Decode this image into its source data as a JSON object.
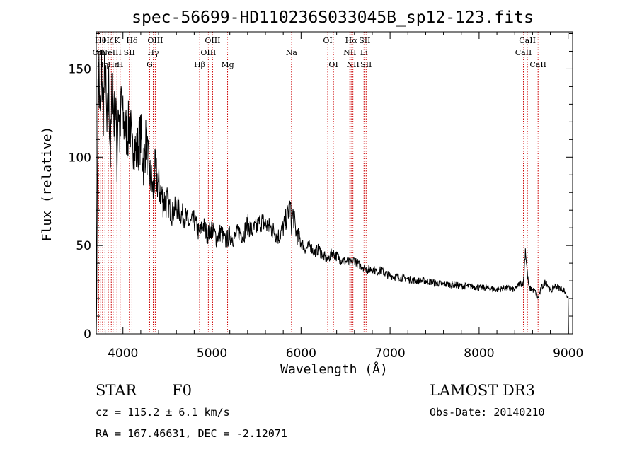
{
  "chart_data": {
    "type": "line",
    "title": "spec-56699-HD110236S033045B_sp12-123.fits",
    "xlabel": "Wavelength (Å)",
    "ylabel": "Flux (relative)",
    "xlim": [
      3700,
      9050
    ],
    "ylim": [
      0,
      171
    ],
    "xticks": [
      4000,
      5000,
      6000,
      7000,
      8000,
      9000
    ],
    "yticks": [
      0,
      50,
      100,
      150
    ],
    "xtick_labels": [
      "4000",
      "5000",
      "6000",
      "7000",
      "8000",
      "9000"
    ],
    "ytick_labels": [
      "0",
      "50",
      "100",
      "150"
    ],
    "line_color": "#000000",
    "marker_color": "#cc0000",
    "series": [
      {
        "name": "flux",
        "x": [
          3700,
          3705,
          3715,
          3730,
          3745,
          3760,
          3780,
          3800,
          3820,
          3840,
          3860,
          3880,
          3900,
          3920,
          3933,
          3945,
          3960,
          3968,
          3980,
          4000,
          4020,
          4050,
          4080,
          4101,
          4120,
          4150,
          4180,
          4200,
          4230,
          4260,
          4290,
          4320,
          4340,
          4360,
          4400,
          4450,
          4500,
          4550,
          4600,
          4650,
          4700,
          4750,
          4800,
          4861,
          4900,
          4950,
          5000,
          5050,
          5100,
          5150,
          5200,
          5250,
          5300,
          5350,
          5400,
          5450,
          5500,
          5550,
          5600,
          5650,
          5700,
          5750,
          5800,
          5850,
          5880,
          5893,
          5910,
          5950,
          6000,
          6050,
          6100,
          6150,
          6200,
          6250,
          6300,
          6350,
          6400,
          6450,
          6500,
          6563,
          6600,
          6650,
          6700,
          6750,
          6800,
          6850,
          6900,
          6950,
          7000,
          7100,
          7200,
          7300,
          7400,
          7500,
          7600,
          7700,
          7800,
          7900,
          8000,
          8100,
          8200,
          8300,
          8400,
          8450,
          8498,
          8520,
          8542,
          8560,
          8600,
          8630,
          8662,
          8700,
          8750,
          8800,
          8850,
          8900,
          8950,
          8980,
          9000,
          9005
        ],
        "values": [
          0,
          18,
          122,
          150,
          118,
          145,
          128,
          152,
          112,
          138,
          100,
          142,
          122,
          128,
          95,
          132,
          120,
          102,
          135,
          120,
          117,
          112,
          122,
          100,
          110,
          102,
          108,
          112,
          96,
          110,
          92,
          86,
          80,
          92,
          84,
          76,
          74,
          68,
          72,
          68,
          66,
          62,
          64,
          56,
          62,
          56,
          60,
          54,
          58,
          52,
          56,
          54,
          58,
          56,
          62,
          58,
          60,
          64,
          62,
          60,
          58,
          55,
          60,
          68,
          72,
          62,
          68,
          56,
          52,
          48,
          50,
          46,
          48,
          44,
          42,
          46,
          44,
          42,
          41,
          40,
          42,
          39,
          38,
          36,
          37,
          35,
          36,
          34,
          33,
          32,
          31,
          30,
          30,
          29,
          28,
          28,
          27,
          27,
          26,
          26,
          25,
          26,
          25,
          28,
          29,
          48,
          34,
          26,
          25,
          24,
          20,
          26,
          30,
          24,
          27,
          26,
          25,
          22,
          21,
          0
        ]
      }
    ],
    "line_markers": [
      {
        "w": 3727,
        "label": "OII",
        "row": 2
      },
      {
        "w": 3750,
        "label": "Hθ",
        "row": 1
      },
      {
        "w": 3771,
        "label": "Hη",
        "row": 3
      },
      {
        "w": 3798,
        "label": "Hι",
        "row": 2
      },
      {
        "w": 3835,
        "label": "Hζ",
        "row": 1
      },
      {
        "w": 3869,
        "label": "NeIII",
        "row": 2
      },
      {
        "w": 3889,
        "label": "Hε",
        "row": 3
      },
      {
        "w": 3933,
        "label": "K",
        "row": 1
      },
      {
        "w": 3968,
        "label": "H",
        "row": 3
      },
      {
        "w": 4072,
        "label": "SII",
        "row": 2
      },
      {
        "w": 4101,
        "label": "Hδ",
        "row": 1
      },
      {
        "w": 4300,
        "label": "G",
        "row": 3
      },
      {
        "w": 4340,
        "label": "Hγ",
        "row": 2
      },
      {
        "w": 4363,
        "label": "OIII",
        "row": 1
      },
      {
        "w": 4861,
        "label": "Hβ",
        "row": 3
      },
      {
        "w": 4959,
        "label": "OIII",
        "row": 2
      },
      {
        "w": 5007,
        "label": "OIII",
        "row": 1
      },
      {
        "w": 5175,
        "label": "Mg",
        "row": 3
      },
      {
        "w": 5893,
        "label": "Na",
        "row": 2
      },
      {
        "w": 6300,
        "label": "OI",
        "row": 1
      },
      {
        "w": 6364,
        "label": "OI",
        "row": 3
      },
      {
        "w": 6548,
        "label": "NII",
        "row": 2
      },
      {
        "w": 6563,
        "label": "Hα",
        "row": 1
      },
      {
        "w": 6583,
        "label": "NII",
        "row": 3
      },
      {
        "w": 6707,
        "label": "Li",
        "row": 2
      },
      {
        "w": 6716,
        "label": "SII",
        "row": 1
      },
      {
        "w": 6731,
        "label": "SII",
        "row": 3
      },
      {
        "w": 8498,
        "label": "CaII",
        "row": 2
      },
      {
        "w": 8542,
        "label": "CaII",
        "row": 1
      },
      {
        "w": 8662,
        "label": "CaII",
        "row": 3
      }
    ]
  },
  "info": {
    "class": "STAR",
    "subclass": "F0",
    "cz": "cz = 115.2 ± 6.1 km/s",
    "radec": "RA = 167.46631, DEC =  -2.12071",
    "survey": "LAMOST DR3",
    "obsdate": "Obs-Date: 20140210"
  }
}
